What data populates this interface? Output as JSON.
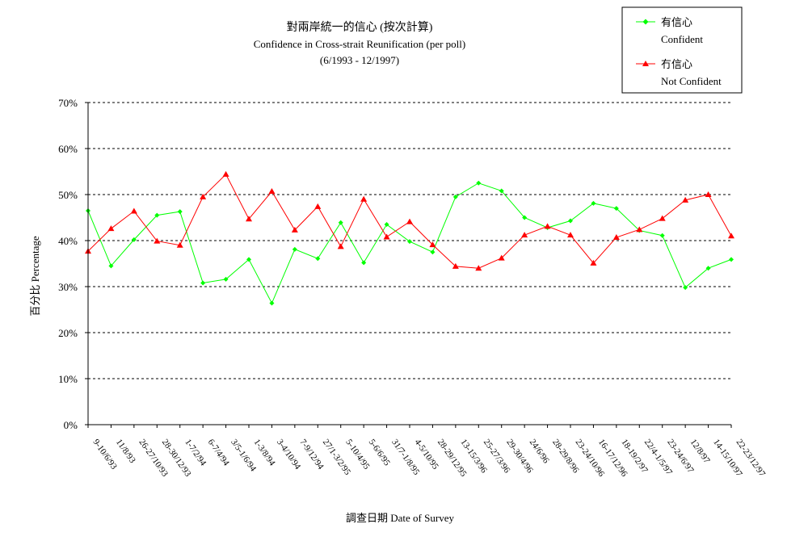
{
  "chart_data": {
    "type": "line",
    "title": "對兩岸統一的信心 (按次計算)",
    "subtitle": "Confidence in Cross-strait Reunification (per poll)",
    "period": "(6/1993 - 12/1997)",
    "xlabel": "調查日期 Date of Survey",
    "ylabel": "百分比 Percentage",
    "ylim": [
      0,
      70
    ],
    "y_ticks": [
      "0%",
      "10%",
      "20%",
      "30%",
      "40%",
      "50%",
      "60%",
      "70%"
    ],
    "grid": true,
    "legend_position": "top-right",
    "categories": [
      "9-10/6/93",
      "11/8/93",
      "26-27/10/93",
      "28-30/12/93",
      "1-7/2/94",
      "6-7/4/94",
      "3/5-1/6/94",
      "1-3/8/94",
      "3-4/10/94",
      "7-9/12/94",
      "27/1-3/2/95",
      "5-10/4/95",
      "5-6/6/95",
      "31/7-1/8/95",
      "4-5/10/95",
      "28-29/12/95",
      "13-15/3/96",
      "25-27/3/96",
      "29-30/4/96",
      "24/6/96",
      "28-29/8/96",
      "23-24/10/96",
      "16-17/12/96",
      "18-19/2/97",
      "22/4-1/5/97",
      "23-24/6/97",
      "12/8/97",
      "14-15/10/97",
      "22-23/12/97"
    ],
    "series": [
      {
        "name": "有信心",
        "name_en": "Confident",
        "color": "#00ff00",
        "marker": "diamond",
        "values": [
          46.5,
          34.5,
          40.2,
          45.5,
          46.3,
          30.8,
          31.6,
          35.9,
          26.4,
          38.1,
          36.1,
          43.9,
          35.2,
          43.5,
          39.8,
          37.5,
          49.5,
          52.5,
          50.8,
          45.0,
          42.8,
          44.3,
          48.1,
          47.0,
          42.2,
          41.1,
          29.8,
          34.0,
          35.9
        ]
      },
      {
        "name": "冇信心",
        "name_en": "Not Confident",
        "color": "#ff0000",
        "marker": "triangle",
        "values": [
          37.7,
          42.6,
          46.4,
          39.9,
          39.0,
          49.5,
          54.4,
          44.7,
          50.7,
          42.3,
          47.4,
          38.7,
          49.0,
          40.8,
          44.1,
          39.1,
          34.4,
          34.0,
          36.2,
          41.2,
          43.1,
          41.2,
          35.1,
          40.7,
          42.4,
          44.8,
          48.8,
          50.0,
          41.0
        ]
      }
    ]
  }
}
